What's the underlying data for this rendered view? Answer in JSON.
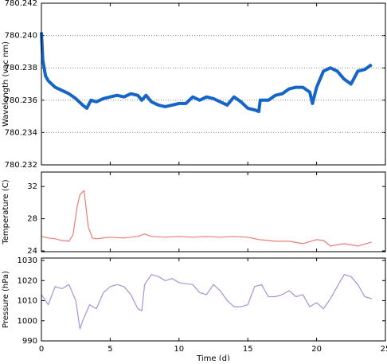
{
  "chart_data": [
    {
      "type": "line",
      "ylabel": "Wavelength (vac nm)",
      "color": "#1565c8",
      "grid": true,
      "xlim": [
        0,
        25
      ],
      "xticks": [
        0,
        5,
        10,
        15,
        20,
        25
      ],
      "ylim": [
        780.232,
        780.242
      ],
      "yticks": [
        {
          "value": 780.232,
          "label": "780.232"
        },
        {
          "value": 780.234,
          "label": "780.234"
        },
        {
          "value": 780.236,
          "label": "780.236"
        },
        {
          "value": 780.238,
          "label": "780.238"
        },
        {
          "value": 780.24,
          "label": "780.240"
        },
        {
          "value": 780.242,
          "label": "780.242"
        }
      ],
      "x": [
        0,
        0.1,
        0.3,
        0.5,
        1,
        1.5,
        2,
        2.5,
        3,
        3.3,
        3.6,
        4,
        4.5,
        5,
        5.5,
        6,
        6.5,
        7,
        7.3,
        7.6,
        8,
        8.5,
        9,
        9.5,
        10,
        10.5,
        11,
        11.5,
        12,
        12.5,
        13,
        13.5,
        14,
        14.5,
        15,
        15.5,
        15.8,
        15.9,
        16.5,
        17,
        17.5,
        18,
        18.5,
        19,
        19.5,
        19.7,
        20,
        20.5,
        21,
        21.5,
        22,
        22.5,
        23,
        23.5,
        24
      ],
      "values": [
        780.2402,
        780.2385,
        780.2375,
        780.2372,
        780.2368,
        780.2366,
        780.2364,
        780.2361,
        780.2357,
        780.2355,
        780.236,
        780.2359,
        780.2361,
        780.2362,
        780.2363,
        780.2362,
        780.2364,
        780.2363,
        780.236,
        780.2363,
        780.2359,
        780.2357,
        780.2356,
        780.2357,
        780.2358,
        780.2358,
        780.2362,
        780.236,
        780.2362,
        780.2361,
        780.2359,
        780.2357,
        780.2362,
        780.2359,
        780.2355,
        780.2354,
        780.2353,
        780.236,
        780.236,
        780.2363,
        780.2364,
        780.2367,
        780.2368,
        780.2368,
        780.2365,
        780.2358,
        780.2368,
        780.2378,
        780.238,
        780.2378,
        780.2373,
        780.237,
        780.2378,
        780.2379,
        780.2382
      ]
    },
    {
      "type": "line",
      "ylabel": "Temperature (C)",
      "color": "#ee7b74",
      "grid": false,
      "xlim": [
        0,
        25
      ],
      "xticks": [
        0,
        5,
        10,
        15,
        20,
        25
      ],
      "ylim": [
        23.9,
        33.8
      ],
      "yticks": [
        24,
        28,
        32
      ],
      "x": [
        0,
        0.5,
        1,
        1.5,
        2,
        2.3,
        2.6,
        2.8,
        3.1,
        3.4,
        3.7,
        4,
        5,
        6,
        7,
        7.5,
        8,
        9,
        10,
        11,
        12,
        13,
        14,
        15,
        15.8,
        16.5,
        17,
        18,
        19,
        20,
        20.5,
        21,
        22,
        23,
        24
      ],
      "values": [
        25.8,
        25.6,
        25.5,
        25.3,
        25.2,
        26,
        29.5,
        31,
        31.5,
        27,
        25.6,
        25.5,
        25.7,
        25.6,
        25.8,
        26.1,
        25.8,
        25.7,
        25.8,
        25.7,
        25.8,
        25.7,
        25.8,
        25.7,
        25.4,
        25.3,
        25.2,
        25.2,
        24.9,
        25.4,
        25.3,
        24.6,
        24.9,
        24.6,
        25.1
      ]
    },
    {
      "type": "line",
      "ylabel": "Pressure (hPa)",
      "xlabel": "Time (d)",
      "color": "#a991d4",
      "grid": false,
      "xlim": [
        0,
        25
      ],
      "xticks": [
        0,
        5,
        10,
        15,
        20,
        25
      ],
      "ylim": [
        990,
        1031.2
      ],
      "yticks": [
        990,
        1000,
        1010,
        1020,
        1030
      ],
      "x": [
        0,
        0.5,
        1,
        1.5,
        2,
        2.5,
        2.8,
        3,
        3.5,
        4,
        4.5,
        5,
        5.5,
        6,
        6.5,
        7,
        7.3,
        7.5,
        8,
        8.5,
        9,
        9.5,
        10,
        11,
        11.5,
        12,
        12.5,
        13,
        13.5,
        14,
        14.5,
        15,
        15.5,
        16,
        16.5,
        17,
        17.5,
        18,
        18.5,
        19,
        19.5,
        20,
        20.5,
        21,
        21.5,
        22,
        22.5,
        23,
        23.5,
        24
      ],
      "values": [
        1013,
        1008,
        1017,
        1016,
        1018,
        1010,
        996,
        1000,
        1008,
        1006,
        1014,
        1017,
        1018,
        1017,
        1013,
        1006,
        1005,
        1018,
        1023,
        1022,
        1020,
        1021,
        1019,
        1018,
        1014,
        1013,
        1018,
        1015,
        1010,
        1007,
        1007,
        1008,
        1017,
        1018,
        1012,
        1012,
        1013,
        1015,
        1012,
        1013,
        1007,
        1009,
        1006,
        1011,
        1017,
        1023,
        1022,
        1018,
        1012,
        1011
      ]
    }
  ]
}
